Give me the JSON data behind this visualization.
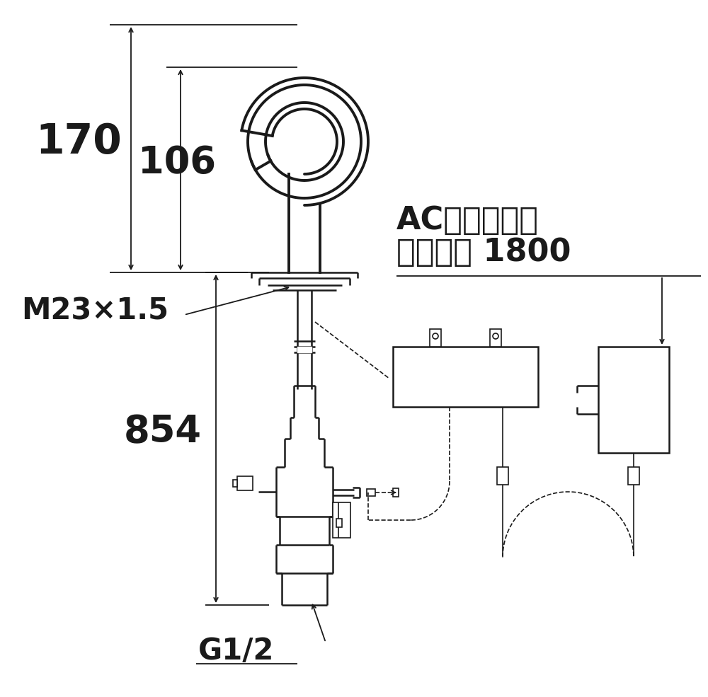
{
  "bg_color": "#ffffff",
  "line_color": "#1a1a1a",
  "text_color": "#1a1a1a",
  "annotations": {
    "dim_170": "170",
    "dim_106": "106",
    "dim_854": "854",
    "label_m23": "M23×1.5",
    "label_g12": "G1/2",
    "label_ac_line1": "ACアダプター",
    "label_ac_line2": "コード長 1800"
  }
}
